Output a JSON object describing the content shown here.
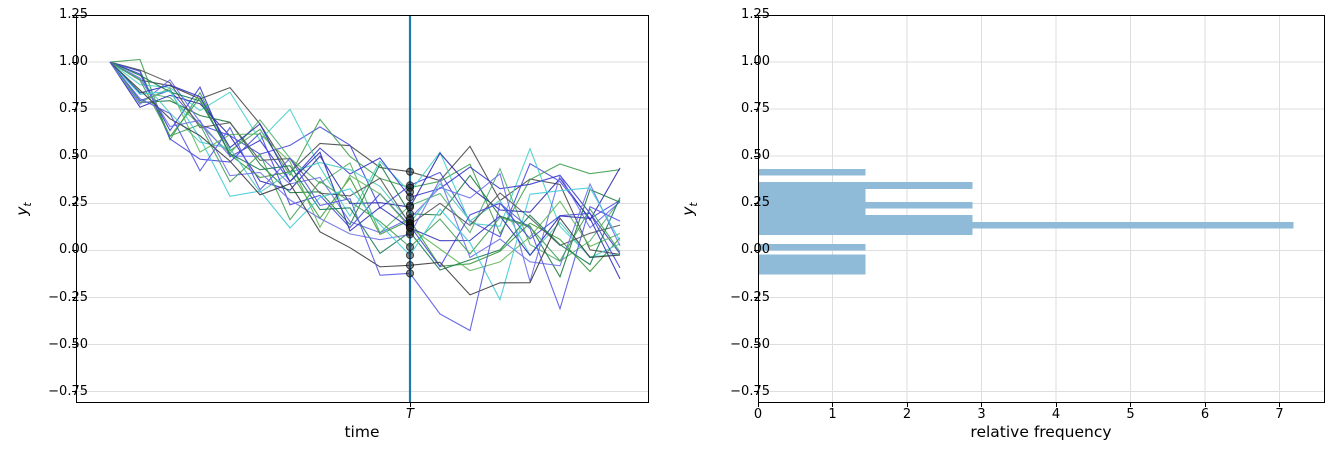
{
  "figure": {
    "background": "#ffffff",
    "grid_color": "#dedede"
  },
  "left_plot": {
    "xlabel": "time",
    "xtick_label": "T",
    "ylabel_main": "y",
    "ylabel_sub": "t",
    "ytick_labels": [
      "1.25",
      "1.00",
      "0.75",
      "0.50",
      "0.25",
      "0.00",
      "−0.25",
      "−0.50",
      "−0.75"
    ],
    "ytick_values": [
      1.25,
      1.0,
      0.75,
      0.5,
      0.25,
      0.0,
      -0.25,
      -0.5,
      -0.75
    ]
  },
  "right_plot": {
    "xlabel": "relative frequency",
    "xtick_labels": [
      "0",
      "1",
      "2",
      "3",
      "4",
      "5",
      "6",
      "7"
    ],
    "xtick_values": [
      0,
      1,
      2,
      3,
      4,
      5,
      6,
      7
    ],
    "ylabel_main": "y",
    "ylabel_sub": "t",
    "ytick_labels": [
      "1.25",
      "1.00",
      "0.75",
      "0.50",
      "0.25",
      "0.00",
      "−0.25",
      "−0.50",
      "−0.75"
    ],
    "ytick_values": [
      1.25,
      1.0,
      0.75,
      0.5,
      0.25,
      0.0,
      -0.25,
      -0.5,
      -0.75
    ]
  },
  "chart_data": [
    {
      "type": "line",
      "title": "",
      "xlabel": "time",
      "ylabel": "y_t",
      "x_range": [
        0,
        17
      ],
      "ylim": [
        -0.81,
        1.25
      ],
      "grid": "horizontal",
      "start_value": 1.0,
      "T_index": 10,
      "x_tick": {
        "position": 10,
        "label": "T"
      },
      "vline": {
        "x": 10,
        "color": "#1f77b4",
        "width": 2.2
      },
      "scatter": {
        "color": "#222222",
        "edge": "#000000",
        "radius": 3.6,
        "opacity": 0.5
      },
      "n_series": 21,
      "series": [
        {
          "color": "#474747",
          "seed": 11,
          "y_at_T": 0.418
        },
        {
          "color": "#4a4ae0",
          "seed": 23,
          "y_at_T": 0.345
        },
        {
          "color": "#3f9e4f",
          "seed": 37,
          "y_at_T": 0.333
        },
        {
          "color": "#45d2c6",
          "seed": 41,
          "y_at_T": 0.31
        },
        {
          "color": "#3838d0",
          "seed": 53,
          "y_at_T": 0.282
        },
        {
          "color": "#54b06d",
          "seed": 67,
          "y_at_T": 0.238
        },
        {
          "color": "#2a2ab2",
          "seed": 71,
          "y_at_T": 0.23
        },
        {
          "color": "#1e7a41",
          "seed": 83,
          "y_at_T": 0.194
        },
        {
          "color": "#6b6bee",
          "seed": 97,
          "y_at_T": 0.17
        },
        {
          "color": "#3a9a3a",
          "seed": 103,
          "y_at_T": 0.16
        },
        {
          "color": "#50c8be",
          "seed": 113,
          "y_at_T": 0.145
        },
        {
          "color": "#555555",
          "seed": 127,
          "y_at_T": 0.138
        },
        {
          "color": "#4646dc",
          "seed": 131,
          "y_at_T": 0.13
        },
        {
          "color": "#63b85a",
          "seed": 139,
          "y_at_T": 0.122
        },
        {
          "color": "#3030b8",
          "seed": 149,
          "y_at_T": 0.119
        },
        {
          "color": "#157a52",
          "seed": 157,
          "y_at_T": 0.097
        },
        {
          "color": "#7070e8",
          "seed": 163,
          "y_at_T": 0.085
        },
        {
          "color": "#44a058",
          "seed": 173,
          "y_at_T": 0.018
        },
        {
          "color": "#40ccd8",
          "seed": 181,
          "y_at_T": -0.026
        },
        {
          "color": "#3c3c3c",
          "seed": 191,
          "y_at_T": -0.079
        },
        {
          "color": "#5858e4",
          "seed": 199,
          "y_at_T": -0.122
        }
      ]
    },
    {
      "type": "bar",
      "orientation": "horizontal",
      "title": "",
      "xlabel": "relative frequency",
      "ylabel": "y_t",
      "xlim": [
        0,
        7.58
      ],
      "ylim": [
        -0.81,
        1.25
      ],
      "xticks": [
        0,
        1,
        2,
        3,
        4,
        5,
        6,
        7
      ],
      "grid": "both",
      "bar_color": "#8fbbd9",
      "bars": [
        {
          "y0": 0.397,
          "y1": 0.432,
          "frequency": 1.44
        },
        {
          "y0": 0.327,
          "y1": 0.362,
          "frequency": 2.88
        },
        {
          "y0": 0.292,
          "y1": 0.327,
          "frequency": 1.44
        },
        {
          "y0": 0.257,
          "y1": 0.292,
          "frequency": 1.44
        },
        {
          "y0": 0.222,
          "y1": 0.257,
          "frequency": 2.88
        },
        {
          "y0": 0.187,
          "y1": 0.222,
          "frequency": 1.44
        },
        {
          "y0": 0.152,
          "y1": 0.187,
          "frequency": 2.88
        },
        {
          "y0": 0.117,
          "y1": 0.152,
          "frequency": 7.19
        },
        {
          "y0": 0.082,
          "y1": 0.117,
          "frequency": 2.88
        },
        {
          "y0": 0.0,
          "y1": 0.035,
          "frequency": 1.44
        },
        {
          "y0": -0.058,
          "y1": -0.023,
          "frequency": 1.44
        },
        {
          "y0": -0.093,
          "y1": -0.058,
          "frequency": 1.44
        },
        {
          "y0": -0.128,
          "y1": -0.093,
          "frequency": 1.44
        }
      ]
    }
  ]
}
